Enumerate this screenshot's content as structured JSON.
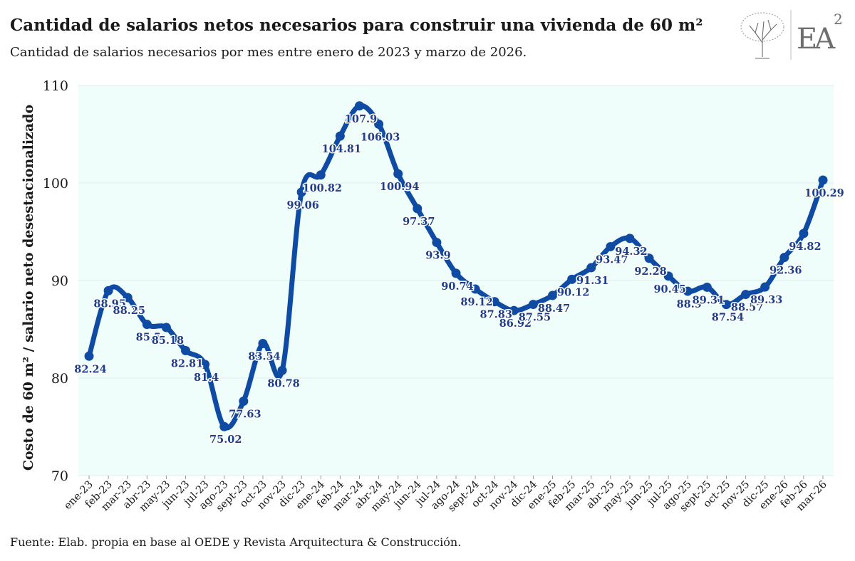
{
  "header": {
    "title": "Cantidad de salarios netos necesarios para construir una vivienda de 60 m²",
    "subtitle": "Cantidad de salarios necesarios por mes entre enero de 2023 y marzo de 2026."
  },
  "footer": {
    "source": "Fuente: Elab. propia en base al OEDE y Revista Arquitectura & Construcción."
  },
  "logo": {
    "text": "EA",
    "superscript": "2",
    "icon": "tree-icon"
  },
  "colors": {
    "line": "#0f4aa3",
    "plot_bg": "#effdfb",
    "label": "#1d3f8a",
    "grid": "#dfeeee"
  },
  "chart_data": {
    "type": "line",
    "ylabel": "Costo de 60 m² / salario neto desestacionalizado",
    "xlabel": "",
    "ylim": [
      70,
      110
    ],
    "yticks": [
      70,
      80,
      90,
      100,
      110
    ],
    "grid": true,
    "categories": [
      "ene-23",
      "feb-23",
      "mar-23",
      "abr-23",
      "may-23",
      "jun-23",
      "jul-23",
      "ago-23",
      "sept-23",
      "oct-23",
      "nov-23",
      "dic-23",
      "ene-24",
      "feb-24",
      "mar-24",
      "abr-24",
      "may-24",
      "jun-24",
      "jul-24",
      "ago-24",
      "sept-24",
      "oct-24",
      "nov-24",
      "dic-24",
      "ene-25",
      "feb-25",
      "mar-25",
      "abr-25",
      "may-25",
      "jun-25",
      "jul-25",
      "ago-25",
      "sept-25",
      "oct-25",
      "nov-25",
      "dic-25",
      "ene-26",
      "feb-26",
      "mar-26"
    ],
    "series": [
      {
        "values": [
          82.24,
          88.95,
          88.25,
          85.5,
          85.18,
          82.81,
          81.4,
          75.02,
          77.63,
          83.54,
          80.78,
          99.06,
          100.82,
          104.81,
          107.9,
          106.03,
          100.94,
          97.37,
          93.9,
          90.74,
          89.12,
          87.83,
          86.92,
          87.55,
          88.47,
          90.12,
          91.31,
          93.47,
          94.32,
          92.28,
          90.45,
          88.9,
          89.31,
          87.54,
          88.57,
          89.33,
          92.36,
          94.82,
          100.29
        ],
        "labels": [
          "82.24",
          "88.95",
          "88.25",
          "85.5",
          "85.18",
          "82.81",
          "81.4",
          "75.02",
          "77.63",
          "83.54",
          "80.78",
          "99.06",
          "100.82",
          "104.81",
          "107.9",
          "106.03",
          "100.94",
          "97.37",
          "93.9",
          "90.74",
          "89.12",
          "87.83",
          "86.92",
          "87.55",
          "88.47",
          "90.12",
          "91.31",
          "93.47",
          "94.32",
          "92.28",
          "90.45",
          "88.9",
          "89.31",
          "87.54",
          "88.57",
          "89.33",
          "92.36",
          "94.82",
          "100.29"
        ]
      }
    ]
  }
}
